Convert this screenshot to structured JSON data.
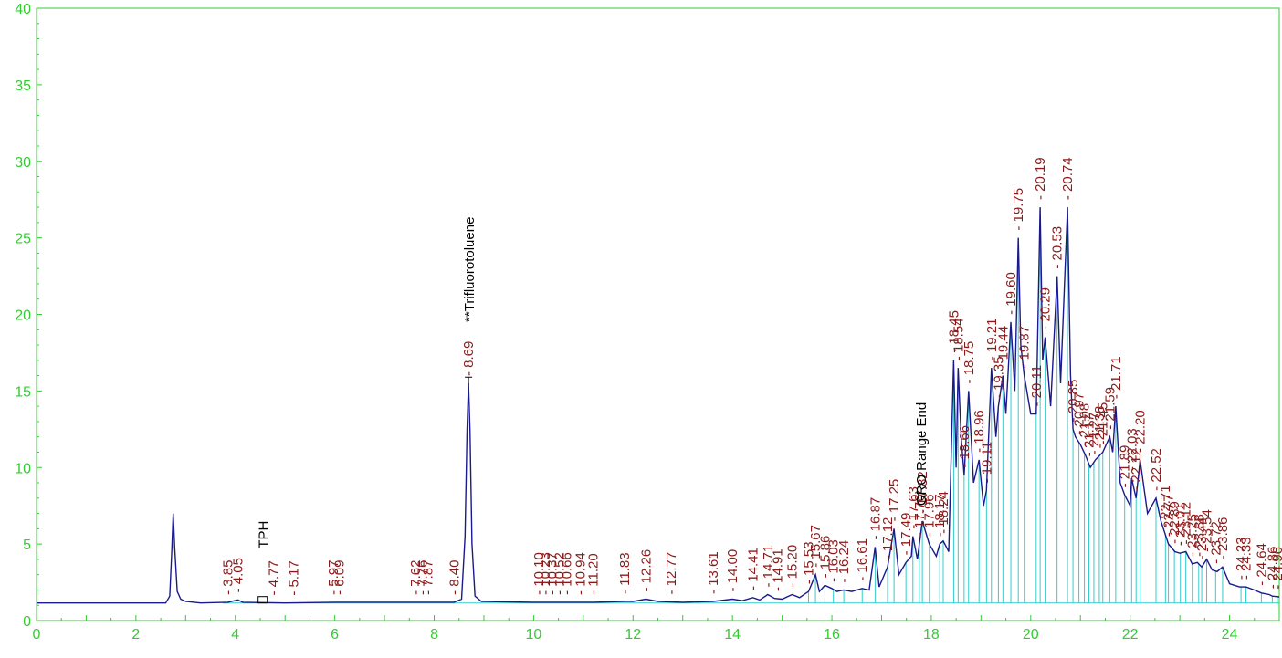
{
  "chart_data": {
    "type": "line",
    "title": "",
    "xlabel": "",
    "ylabel": "",
    "xlim": [
      0,
      25
    ],
    "ylim": [
      0,
      40
    ],
    "x_ticks": [
      0,
      2,
      4,
      6,
      8,
      10,
      12,
      14,
      16,
      18,
      20,
      22,
      24
    ],
    "y_ticks": [
      0,
      5,
      10,
      15,
      20,
      25,
      30,
      35,
      40
    ],
    "grid": false,
    "colors": {
      "trace": "#1a1a8c",
      "integration": "#33cccc",
      "axis": "#33cc33",
      "peak_label": "#8b1a1a",
      "compound_label": "#000000"
    },
    "series": [
      {
        "values": [
          [
            0,
            1.15
          ],
          [
            2.6,
            1.15
          ],
          [
            2.68,
            1.6
          ],
          [
            2.72,
            4.5
          ],
          [
            2.75,
            7.0
          ],
          [
            2.78,
            4.8
          ],
          [
            2.83,
            1.9
          ],
          [
            2.9,
            1.4
          ],
          [
            3.0,
            1.25
          ],
          [
            3.3,
            1.15
          ],
          [
            3.85,
            1.2
          ],
          [
            4.05,
            1.35
          ],
          [
            4.15,
            1.2
          ],
          [
            5.0,
            1.15
          ],
          [
            6.0,
            1.2
          ],
          [
            7.6,
            1.2
          ],
          [
            7.85,
            1.2
          ],
          [
            8.4,
            1.2
          ],
          [
            8.55,
            1.4
          ],
          [
            8.62,
            5.5
          ],
          [
            8.66,
            12.5
          ],
          [
            8.69,
            15.5
          ],
          [
            8.72,
            12.5
          ],
          [
            8.76,
            5.0
          ],
          [
            8.82,
            1.6
          ],
          [
            8.95,
            1.25
          ],
          [
            10.0,
            1.2
          ],
          [
            11.2,
            1.2
          ],
          [
            11.83,
            1.25
          ],
          [
            12.0,
            1.25
          ],
          [
            12.26,
            1.4
          ],
          [
            12.5,
            1.25
          ],
          [
            13.0,
            1.2
          ],
          [
            13.61,
            1.25
          ],
          [
            14.0,
            1.4
          ],
          [
            14.2,
            1.3
          ],
          [
            14.41,
            1.5
          ],
          [
            14.55,
            1.35
          ],
          [
            14.71,
            1.7
          ],
          [
            14.85,
            1.45
          ],
          [
            15.0,
            1.4
          ],
          [
            15.2,
            1.7
          ],
          [
            15.35,
            1.5
          ],
          [
            15.53,
            1.9
          ],
          [
            15.67,
            3.0
          ],
          [
            15.75,
            1.9
          ],
          [
            15.86,
            2.3
          ],
          [
            16.0,
            2.1
          ],
          [
            16.1,
            1.9
          ],
          [
            16.24,
            2.0
          ],
          [
            16.4,
            1.9
          ],
          [
            16.61,
            2.1
          ],
          [
            16.75,
            2.0
          ],
          [
            16.87,
            4.8
          ],
          [
            16.95,
            2.2
          ],
          [
            17.12,
            3.5
          ],
          [
            17.25,
            6.0
          ],
          [
            17.35,
            3.0
          ],
          [
            17.49,
            3.8
          ],
          [
            17.6,
            4.2
          ],
          [
            17.63,
            5.5
          ],
          [
            17.72,
            4.0
          ],
          [
            17.82,
            6.5
          ],
          [
            17.96,
            5.0
          ],
          [
            18.1,
            4.2
          ],
          [
            18.17,
            5.0
          ],
          [
            18.24,
            5.2
          ],
          [
            18.35,
            4.5
          ],
          [
            18.45,
            17.0
          ],
          [
            18.5,
            10.0
          ],
          [
            18.54,
            16.5
          ],
          [
            18.6,
            12.0
          ],
          [
            18.66,
            9.5
          ],
          [
            18.75,
            15.0
          ],
          [
            18.85,
            9.0
          ],
          [
            18.96,
            10.5
          ],
          [
            19.05,
            7.5
          ],
          [
            19.11,
            8.5
          ],
          [
            19.21,
            16.5
          ],
          [
            19.3,
            12.0
          ],
          [
            19.35,
            14.0
          ],
          [
            19.44,
            16.0
          ],
          [
            19.5,
            13.5
          ],
          [
            19.6,
            19.5
          ],
          [
            19.68,
            15.0
          ],
          [
            19.75,
            25.0
          ],
          [
            19.8,
            18.0
          ],
          [
            19.87,
            16.0
          ],
          [
            20.0,
            13.5
          ],
          [
            20.11,
            13.5
          ],
          [
            20.19,
            27.0
          ],
          [
            20.24,
            17.0
          ],
          [
            20.29,
            18.5
          ],
          [
            20.4,
            14.0
          ],
          [
            20.53,
            22.5
          ],
          [
            20.6,
            15.5
          ],
          [
            20.74,
            27.0
          ],
          [
            20.8,
            16.0
          ],
          [
            20.85,
            12.5
          ],
          [
            20.9,
            12.0
          ],
          [
            21.0,
            11.5
          ],
          [
            21.1,
            10.8
          ],
          [
            21.2,
            10.0
          ],
          [
            21.3,
            10.5
          ],
          [
            21.45,
            11.0
          ],
          [
            21.52,
            11.5
          ],
          [
            21.59,
            12.0
          ],
          [
            21.65,
            11.0
          ],
          [
            21.71,
            14.0
          ],
          [
            21.8,
            9.0
          ],
          [
            21.89,
            8.2
          ],
          [
            22.0,
            7.5
          ],
          [
            22.03,
            9.3
          ],
          [
            22.12,
            8.0
          ],
          [
            22.2,
            10.5
          ],
          [
            22.35,
            7.0
          ],
          [
            22.52,
            8.0
          ],
          [
            22.62,
            6.5
          ],
          [
            22.77,
            5.0
          ],
          [
            22.9,
            4.5
          ],
          [
            23.0,
            4.4
          ],
          [
            23.12,
            4.5
          ],
          [
            23.25,
            3.7
          ],
          [
            23.35,
            3.8
          ],
          [
            23.44,
            3.5
          ],
          [
            23.54,
            4.0
          ],
          [
            23.65,
            3.3
          ],
          [
            23.75,
            3.2
          ],
          [
            23.86,
            3.5
          ],
          [
            24.0,
            2.4
          ],
          [
            24.2,
            2.2
          ],
          [
            24.33,
            2.2
          ],
          [
            24.5,
            2.0
          ],
          [
            24.64,
            1.8
          ],
          [
            24.8,
            1.7
          ],
          [
            24.86,
            1.6
          ],
          [
            25.0,
            1.55
          ]
        ]
      }
    ],
    "peak_labels": [
      "3.85",
      "4.05",
      "4.77",
      "5.17",
      "5.97",
      "6.09",
      "7.62",
      "7.76",
      "7.87",
      "8.40",
      "8.69",
      "10.10",
      "10.23",
      "10.37",
      "10.52",
      "10.66",
      "10.94",
      "11.20",
      "11.83",
      "12.26",
      "12.77",
      "13.61",
      "14.00",
      "14.41",
      "14.71",
      "14.91",
      "15.20",
      "15.53",
      "15.67",
      "15.86",
      "16.03",
      "16.24",
      "16.61",
      "16.87",
      "17.12",
      "17.25",
      "17.49",
      "17.63",
      "17.76",
      "17.82",
      "17.96",
      "18.17",
      "18.24",
      "18.45",
      "18.54",
      "18.66",
      "18.75",
      "18.96",
      "19.11",
      "19.21",
      "19.35",
      "19.44",
      "19.60",
      "19.75",
      "19.87",
      "20.11",
      "20.19",
      "20.29",
      "20.53",
      "20.74",
      "20.85",
      "20.97",
      "21.08",
      "21.17",
      "21.27",
      "21.38",
      "21.45",
      "21.59",
      "21.71",
      "21.89",
      "22.03",
      "22.12",
      "22.20",
      "22.52",
      "22.71",
      "22.77",
      "22.89",
      "23.01",
      "23.12",
      "23.25",
      "23.38",
      "23.44",
      "23.54",
      "23.72",
      "23.86",
      "24.23",
      "24.33",
      "24.64",
      "24.86",
      "24.96"
    ],
    "annotations": [
      {
        "text": "TPH",
        "x": 4.55
      },
      {
        "text": "**Trifluorotoluene",
        "x": 8.69
      },
      {
        "text": "GRO Range End",
        "x": 17.78
      }
    ]
  }
}
